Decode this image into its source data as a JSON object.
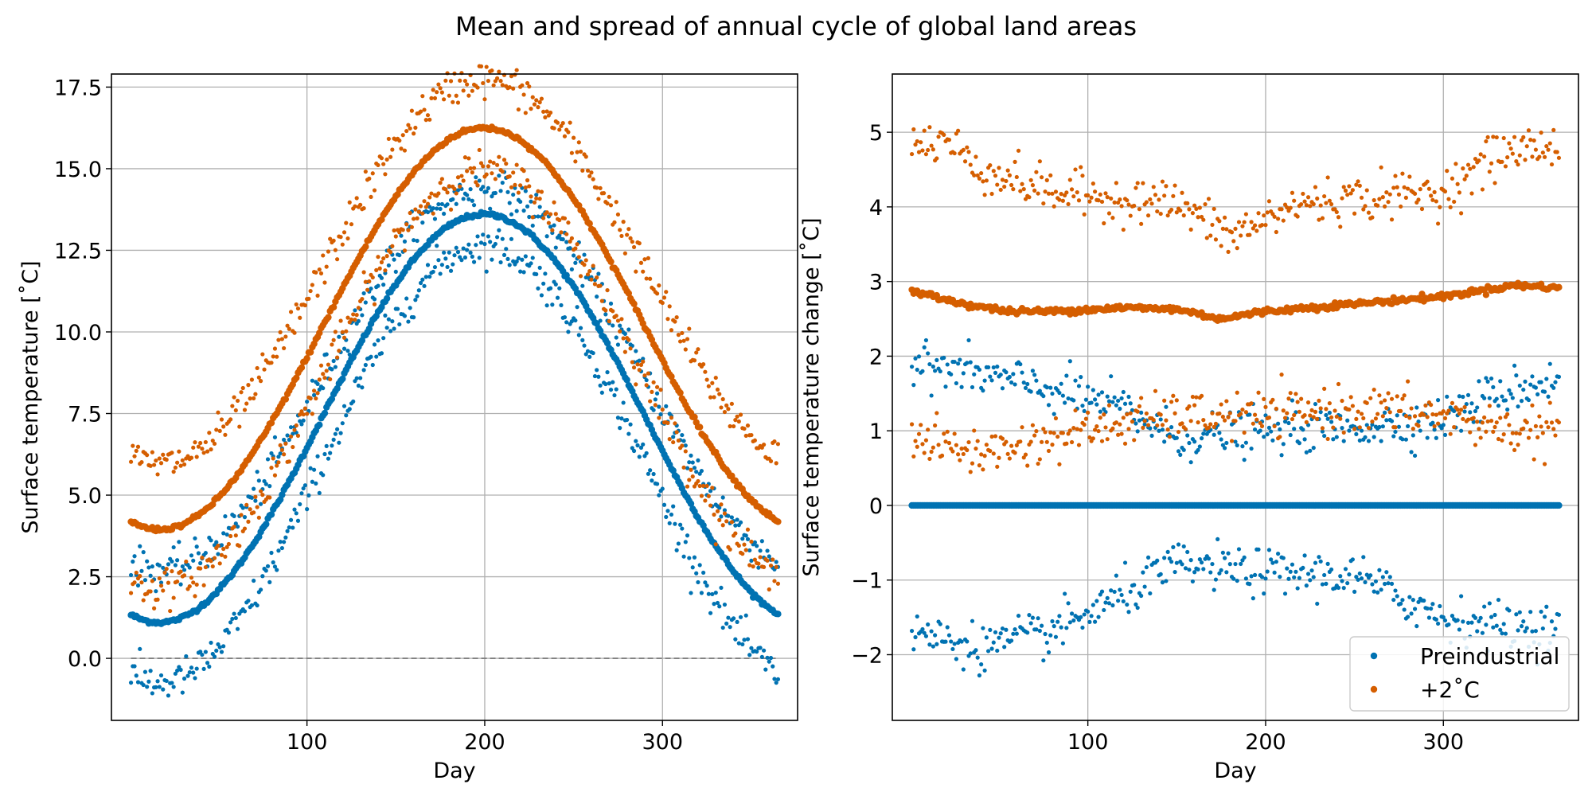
{
  "figure": {
    "title": "Mean and spread of annual cycle of global land areas"
  },
  "colors": {
    "preindustrial": "#0072b2",
    "plus2": "#d55e00",
    "grid": "#b0b0b0",
    "zero_line": "#808080"
  },
  "chart_data": [
    {
      "type": "scatter",
      "panel": "left",
      "title": "",
      "xlabel": "Day",
      "ylabel": "Surface temperature [˚C]",
      "xlim": [
        -10,
        376
      ],
      "ylim": [
        -1.9,
        17.9
      ],
      "xticks": [
        100,
        200,
        300
      ],
      "xtick_labels": [
        "100",
        "200",
        "300"
      ],
      "yticks": [
        0.0,
        2.5,
        5.0,
        7.5,
        10.0,
        12.5,
        15.0,
        17.5
      ],
      "ytick_labels": [
        "0.0",
        "2.5",
        "5.0",
        "7.5",
        "10.0",
        "12.5",
        "15.0",
        "17.5"
      ],
      "grid": true,
      "reference_line": {
        "y": 0.0,
        "style": "dashed",
        "x_range": [
          1,
          365
        ]
      },
      "series_model": "annual_cycle",
      "series": [
        {
          "group": "preindustrial",
          "stat": "mean",
          "mean": 7.35,
          "amp": 6.25,
          "phase_day": 17,
          "noise": 0.03,
          "day_range": [
            1,
            365
          ]
        },
        {
          "group": "preindustrial",
          "stat": "upper",
          "mean": 8.55,
          "amp": 5.85,
          "phase_day": 17,
          "noise": 0.28,
          "day_range": [
            1,
            365
          ]
        },
        {
          "group": "preindustrial",
          "stat": "lower",
          "mean": 5.95,
          "amp": 6.7,
          "phase_day": 17,
          "noise": 0.28,
          "day_range": [
            1,
            365
          ]
        },
        {
          "group": "plus2",
          "stat": "mean",
          "mean": 10.1,
          "amp": 6.15,
          "phase_day": 17,
          "noise": 0.03,
          "day_range": [
            1,
            365
          ]
        },
        {
          "group": "plus2",
          "stat": "upper",
          "mean": 11.85,
          "amp": 5.9,
          "phase_day": 17,
          "noise": 0.28,
          "day_range": [
            1,
            365
          ]
        },
        {
          "group": "plus2",
          "stat": "lower",
          "mean": 8.55,
          "amp": 6.4,
          "phase_day": 17,
          "noise": 0.28,
          "day_range": [
            1,
            365
          ]
        }
      ]
    },
    {
      "type": "scatter",
      "panel": "right",
      "title": "",
      "xlabel": "Day",
      "ylabel": "Surface temperature change [˚C]",
      "xlim": [
        -10,
        376
      ],
      "ylim": [
        -2.88,
        5.78
      ],
      "xticks": [
        100,
        200,
        300
      ],
      "xtick_labels": [
        "100",
        "200",
        "300"
      ],
      "yticks": [
        -2,
        -1,
        0,
        1,
        2,
        3,
        4,
        5
      ],
      "ytick_labels": [
        "−2",
        "−1",
        "0",
        "1",
        "2",
        "3",
        "4",
        "5"
      ],
      "grid": true,
      "legend": {
        "placement": "lower right",
        "entries": [
          {
            "label": "Preindustrial",
            "group": "preindustrial"
          },
          {
            "label": "+2˚C",
            "group": "plus2"
          }
        ]
      },
      "series_model": "piecewise_linear",
      "series": [
        {
          "group": "preindustrial",
          "stat": "mean",
          "days": [
            1,
            365
          ],
          "values": [
            0.0,
            0.0
          ],
          "noise": 0.0
        },
        {
          "group": "preindustrial",
          "stat": "upper",
          "days": [
            1,
            40,
            80,
            120,
            150,
            200,
            250,
            300,
            330,
            365
          ],
          "values": [
            1.9,
            1.75,
            1.55,
            1.3,
            0.9,
            1.0,
            1.05,
            1.15,
            1.5,
            1.7
          ],
          "noise": 0.15
        },
        {
          "group": "preindustrial",
          "stat": "lower",
          "days": [
            1,
            40,
            80,
            120,
            150,
            200,
            250,
            300,
            330,
            365
          ],
          "values": [
            -1.7,
            -1.9,
            -1.7,
            -1.2,
            -0.8,
            -0.9,
            -0.95,
            -1.5,
            -1.6,
            -1.65
          ],
          "noise": 0.15
        },
        {
          "group": "plus2",
          "stat": "mean",
          "days": [
            1,
            30,
            55,
            80,
            120,
            150,
            175,
            200,
            250,
            300,
            340,
            365
          ],
          "values": [
            2.87,
            2.7,
            2.6,
            2.6,
            2.65,
            2.63,
            2.5,
            2.6,
            2.7,
            2.8,
            2.95,
            2.92
          ],
          "noise": 0.02
        },
        {
          "group": "plus2",
          "stat": "upper",
          "days": [
            1,
            20,
            40,
            80,
            120,
            150,
            180,
            220,
            300,
            330,
            365
          ],
          "values": [
            4.8,
            4.9,
            4.5,
            4.2,
            4.1,
            4.05,
            3.6,
            4.05,
            4.2,
            4.7,
            4.85
          ],
          "noise": 0.15
        },
        {
          "group": "plus2",
          "stat": "lower",
          "days": [
            1,
            40,
            80,
            120,
            150,
            200,
            250,
            300,
            340,
            365
          ],
          "values": [
            0.9,
            0.7,
            0.9,
            1.1,
            1.2,
            1.2,
            1.3,
            1.2,
            1.0,
            1.0
          ],
          "noise": 0.15
        }
      ]
    }
  ]
}
